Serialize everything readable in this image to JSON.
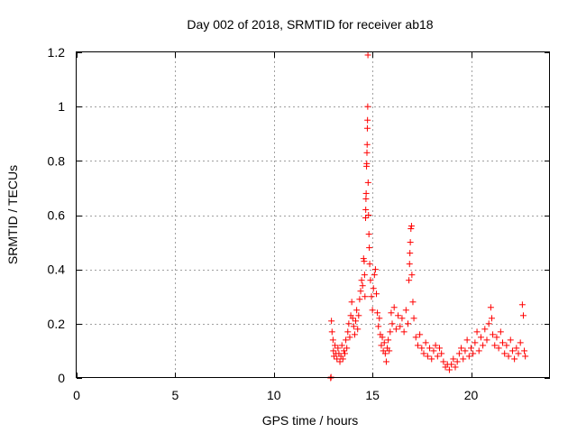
{
  "chart_data": {
    "type": "scatter",
    "title": "Day 002 of 2018, SRMTID for receiver ab18",
    "xlabel": "GPS time / hours",
    "ylabel": "SRMTID / TECUs",
    "xlim": [
      0,
      24
    ],
    "ylim": [
      0,
      1.2
    ],
    "x_ticks": [
      0,
      5,
      10,
      15,
      20
    ],
    "x_tick_labels": [
      "0",
      "5",
      "10",
      "15",
      "20"
    ],
    "y_ticks": [
      0,
      0.2,
      0.4,
      0.6,
      0.8,
      1.0,
      1.2
    ],
    "y_tick_labels": [
      "0",
      "0.2",
      "0.4",
      "0.6",
      "0.8",
      "1",
      "1.2"
    ],
    "grid": true,
    "marker": "+",
    "marker_color": "#ff0000",
    "series": [
      {
        "name": "SRMTID",
        "points": [
          [
            12.88,
            0.0
          ],
          [
            12.9,
            0.003
          ],
          [
            12.92,
            0.21
          ],
          [
            12.95,
            0.17
          ],
          [
            13.0,
            0.14
          ],
          [
            13.02,
            0.1
          ],
          [
            13.05,
            0.08
          ],
          [
            13.1,
            0.12
          ],
          [
            13.15,
            0.09
          ],
          [
            13.2,
            0.07
          ],
          [
            13.25,
            0.11
          ],
          [
            13.3,
            0.09
          ],
          [
            13.35,
            0.06
          ],
          [
            13.4,
            0.08
          ],
          [
            13.45,
            0.12
          ],
          [
            13.5,
            0.07
          ],
          [
            13.55,
            0.1
          ],
          [
            13.6,
            0.09
          ],
          [
            13.65,
            0.14
          ],
          [
            13.7,
            0.11
          ],
          [
            13.75,
            0.17
          ],
          [
            13.8,
            0.2
          ],
          [
            13.85,
            0.15
          ],
          [
            13.9,
            0.23
          ],
          [
            13.95,
            0.28
          ],
          [
            14.0,
            0.22
          ],
          [
            14.05,
            0.19
          ],
          [
            14.1,
            0.16
          ],
          [
            14.15,
            0.21
          ],
          [
            14.2,
            0.25
          ],
          [
            14.25,
            0.18
          ],
          [
            14.3,
            0.23
          ],
          [
            14.35,
            0.29
          ],
          [
            14.4,
            0.32
          ],
          [
            14.45,
            0.36
          ],
          [
            14.5,
            0.34
          ],
          [
            14.55,
            0.44
          ],
          [
            14.58,
            0.43
          ],
          [
            14.6,
            0.38
          ],
          [
            14.62,
            0.3
          ],
          [
            14.65,
            0.59
          ],
          [
            14.66,
            0.62
          ],
          [
            14.67,
            0.66
          ],
          [
            14.68,
            0.68
          ],
          [
            14.7,
            0.78
          ],
          [
            14.71,
            0.79
          ],
          [
            14.72,
            0.83
          ],
          [
            14.73,
            0.86
          ],
          [
            14.74,
            0.92
          ],
          [
            14.75,
            0.95
          ],
          [
            14.76,
            1.0
          ],
          [
            14.77,
            1.19
          ],
          [
            14.78,
            0.72
          ],
          [
            14.8,
            0.6
          ],
          [
            14.82,
            0.53
          ],
          [
            14.84,
            0.48
          ],
          [
            14.86,
            0.42
          ],
          [
            14.9,
            0.36
          ],
          [
            14.95,
            0.3
          ],
          [
            15.0,
            0.25
          ],
          [
            15.05,
            0.33
          ],
          [
            15.1,
            0.38
          ],
          [
            15.15,
            0.4
          ],
          [
            15.2,
            0.31
          ],
          [
            15.25,
            0.24
          ],
          [
            15.3,
            0.19
          ],
          [
            15.35,
            0.22
          ],
          [
            15.4,
            0.16
          ],
          [
            15.45,
            0.12
          ],
          [
            15.5,
            0.15
          ],
          [
            15.55,
            0.1
          ],
          [
            15.6,
            0.13
          ],
          [
            15.65,
            0.09
          ],
          [
            15.7,
            0.06
          ],
          [
            15.75,
            0.11
          ],
          [
            15.8,
            0.14
          ],
          [
            15.85,
            0.1
          ],
          [
            15.9,
            0.17
          ],
          [
            15.95,
            0.24
          ],
          [
            16.0,
            0.2
          ],
          [
            16.1,
            0.26
          ],
          [
            16.2,
            0.18
          ],
          [
            16.3,
            0.23
          ],
          [
            16.4,
            0.19
          ],
          [
            16.5,
            0.22
          ],
          [
            16.6,
            0.17
          ],
          [
            16.7,
            0.25
          ],
          [
            16.8,
            0.2
          ],
          [
            16.85,
            0.36
          ],
          [
            16.88,
            0.42
          ],
          [
            16.9,
            0.46
          ],
          [
            16.92,
            0.5
          ],
          [
            16.95,
            0.55
          ],
          [
            16.98,
            0.56
          ],
          [
            17.0,
            0.38
          ],
          [
            17.05,
            0.28
          ],
          [
            17.1,
            0.22
          ],
          [
            17.2,
            0.15
          ],
          [
            17.3,
            0.12
          ],
          [
            17.4,
            0.16
          ],
          [
            17.5,
            0.11
          ],
          [
            17.6,
            0.09
          ],
          [
            17.7,
            0.13
          ],
          [
            17.8,
            0.08
          ],
          [
            17.9,
            0.11
          ],
          [
            18.0,
            0.07
          ],
          [
            18.1,
            0.1
          ],
          [
            18.2,
            0.12
          ],
          [
            18.3,
            0.08
          ],
          [
            18.4,
            0.11
          ],
          [
            18.5,
            0.09
          ],
          [
            18.6,
            0.06
          ],
          [
            18.7,
            0.04
          ],
          [
            18.8,
            0.05
          ],
          [
            18.9,
            0.03
          ],
          [
            19.0,
            0.05
          ],
          [
            19.1,
            0.07
          ],
          [
            19.2,
            0.04
          ],
          [
            19.3,
            0.06
          ],
          [
            19.4,
            0.09
          ],
          [
            19.5,
            0.11
          ],
          [
            19.6,
            0.07
          ],
          [
            19.7,
            0.1
          ],
          [
            19.8,
            0.14
          ],
          [
            19.9,
            0.08
          ],
          [
            20.0,
            0.11
          ],
          [
            20.1,
            0.09
          ],
          [
            20.2,
            0.13
          ],
          [
            20.3,
            0.17
          ],
          [
            20.4,
            0.1
          ],
          [
            20.5,
            0.15
          ],
          [
            20.6,
            0.12
          ],
          [
            20.7,
            0.18
          ],
          [
            20.8,
            0.14
          ],
          [
            20.9,
            0.2
          ],
          [
            21.0,
            0.26
          ],
          [
            21.05,
            0.22
          ],
          [
            21.1,
            0.16
          ],
          [
            21.2,
            0.12
          ],
          [
            21.3,
            0.15
          ],
          [
            21.4,
            0.11
          ],
          [
            21.5,
            0.17
          ],
          [
            21.6,
            0.13
          ],
          [
            21.7,
            0.09
          ],
          [
            21.8,
            0.12
          ],
          [
            21.9,
            0.08
          ],
          [
            22.0,
            0.14
          ],
          [
            22.1,
            0.1
          ],
          [
            22.2,
            0.07
          ],
          [
            22.3,
            0.11
          ],
          [
            22.4,
            0.09
          ],
          [
            22.5,
            0.13
          ],
          [
            22.6,
            0.27
          ],
          [
            22.65,
            0.23
          ],
          [
            22.7,
            0.1
          ],
          [
            22.75,
            0.08
          ]
        ]
      }
    ]
  }
}
